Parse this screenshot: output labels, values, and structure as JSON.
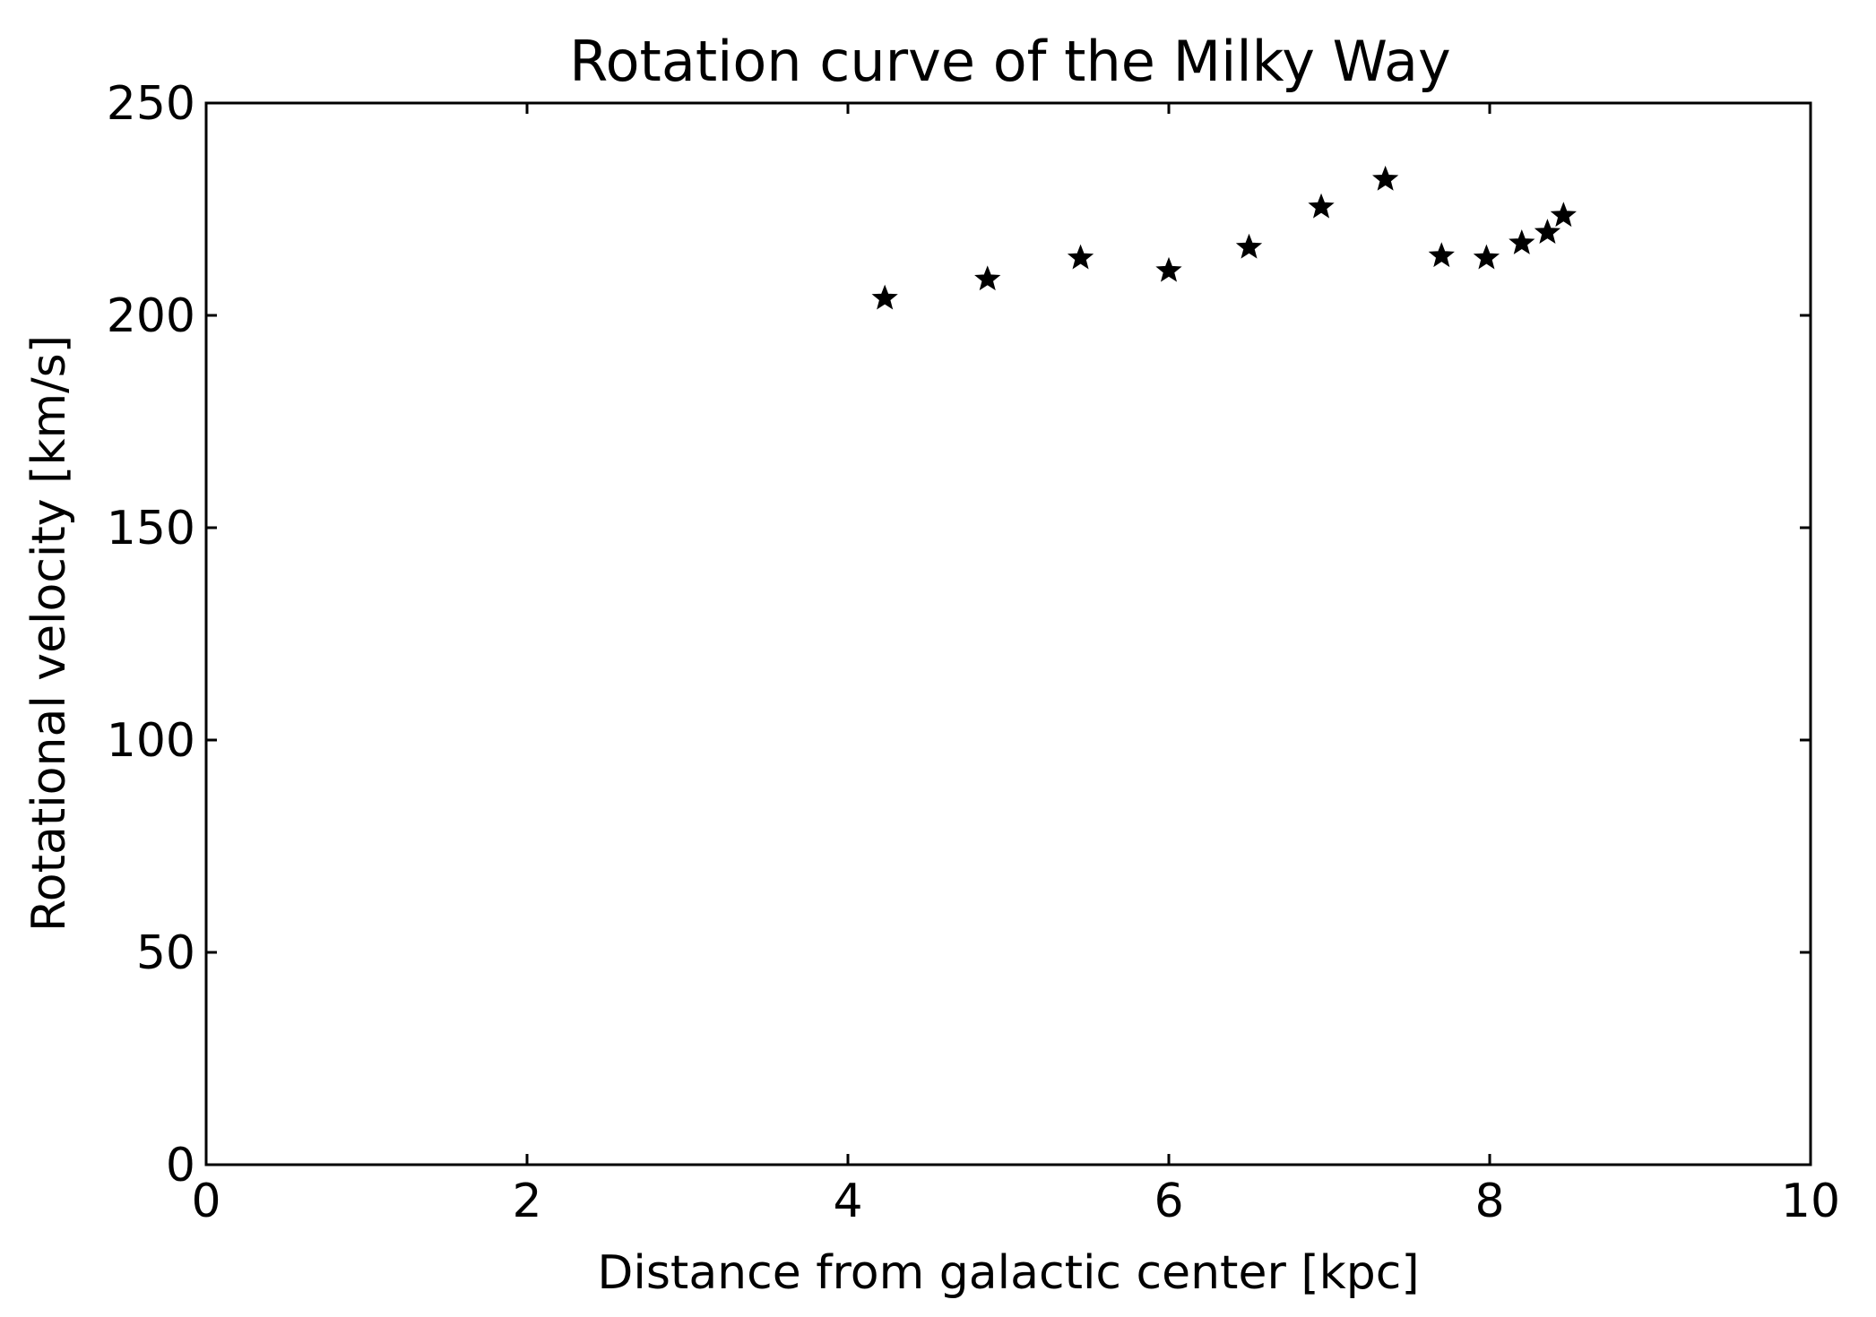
{
  "chart_data": {
    "type": "scatter",
    "title": "Rotation curve of the Milky Way",
    "xlabel": "Distance from galactic center [kpc]",
    "ylabel": "Rotational velocity [km/s]",
    "xlim": [
      0,
      10
    ],
    "ylim": [
      0,
      250
    ],
    "x_ticks": [
      "0",
      "2",
      "4",
      "6",
      "8",
      "10"
    ],
    "y_ticks": [
      "0",
      "50",
      "100",
      "150",
      "200",
      "250"
    ],
    "grid": false,
    "marker": "star",
    "marker_color": "#000000",
    "x": [
      4.23,
      4.87,
      5.45,
      6.0,
      6.5,
      6.95,
      7.35,
      7.7,
      7.98,
      8.2,
      8.36,
      8.46
    ],
    "y": [
      204,
      208.5,
      213.5,
      210.5,
      216,
      225.5,
      232,
      214,
      213.5,
      217,
      219.5,
      223.5
    ]
  }
}
